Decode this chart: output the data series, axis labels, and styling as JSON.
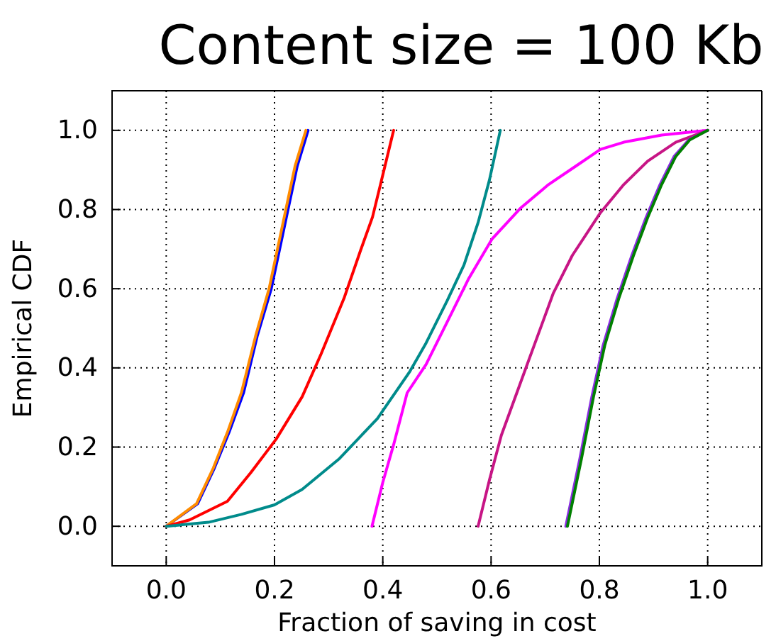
{
  "chart_data": {
    "type": "line",
    "title": "Content size = 100 Kb",
    "xlabel": "Fraction of saving in cost",
    "ylabel": "Empirical CDF",
    "xlim": [
      -0.1,
      1.1
    ],
    "ylim": [
      -0.1,
      1.1
    ],
    "xticks": [
      {
        "value": 0,
        "label": "0.0"
      },
      0.2,
      0.4,
      0.6,
      0.8,
      {
        "value": 1,
        "label": "1.0"
      }
    ],
    "yticks": [
      {
        "value": 0,
        "label": "0.0"
      },
      0.2,
      0.4,
      0.6,
      0.8,
      {
        "value": 1,
        "label": "1.0"
      }
    ],
    "grid": true,
    "line_style": "solid",
    "marker": "none",
    "series": [
      {
        "color": "#0000ff",
        "x": [
          0,
          0.058,
          0.089,
          0.116,
          0.143,
          0.168,
          0.194,
          0.22,
          0.242,
          0.262
        ],
        "values": [
          0,
          0.057,
          0.147,
          0.237,
          0.338,
          0.48,
          0.6,
          0.768,
          0.91,
          1.0
        ]
      },
      {
        "color": "#ff8c00",
        "x": [
          0,
          0.056,
          0.087,
          0.113,
          0.139,
          0.165,
          0.19,
          0.216,
          0.238,
          0.258
        ],
        "values": [
          0,
          0.057,
          0.147,
          0.237,
          0.338,
          0.48,
          0.6,
          0.768,
          0.91,
          1.0
        ]
      },
      {
        "color": "#ff0000",
        "x": [
          0,
          0.043,
          0.113,
          0.156,
          0.203,
          0.251,
          0.286,
          0.329,
          0.359,
          0.381,
          0.398,
          0.42
        ],
        "values": [
          0,
          0.016,
          0.063,
          0.135,
          0.22,
          0.327,
          0.435,
          0.578,
          0.697,
          0.781,
          0.876,
          1.0
        ]
      },
      {
        "color": "#008b8b",
        "x": [
          0,
          0.078,
          0.139,
          0.2,
          0.251,
          0.32,
          0.39,
          0.45,
          0.48,
          0.519,
          0.55,
          0.576,
          0.597,
          0.617
        ],
        "values": [
          0,
          0.01,
          0.03,
          0.054,
          0.093,
          0.171,
          0.272,
          0.391,
          0.463,
          0.57,
          0.66,
          0.767,
          0.875,
          1.0
        ]
      },
      {
        "color": "#ff00ff",
        "x": [
          0.38,
          0.4,
          0.42,
          0.445,
          0.48,
          0.515,
          0.558,
          0.602,
          0.654,
          0.706,
          0.758,
          0.802,
          0.845,
          0.915,
          1.0
        ],
        "values": [
          0,
          0.111,
          0.206,
          0.337,
          0.409,
          0.505,
          0.624,
          0.726,
          0.803,
          0.863,
          0.911,
          0.952,
          0.97,
          0.988,
          1.0
        ]
      },
      {
        "color": "#c71585",
        "x": [
          0.576,
          0.597,
          0.619,
          0.667,
          0.715,
          0.75,
          0.802,
          0.845,
          0.889,
          0.941,
          1.0
        ],
        "values": [
          0,
          0.117,
          0.23,
          0.41,
          0.589,
          0.684,
          0.792,
          0.863,
          0.922,
          0.97,
          1.0
        ]
      },
      {
        "color": "#8a2be2",
        "x": [
          0.738,
          0.764,
          0.786,
          0.807,
          0.833,
          0.86,
          0.886,
          0.912,
          0.938,
          0.965,
          1.0
        ],
        "values": [
          0,
          0.171,
          0.326,
          0.457,
          0.576,
          0.684,
          0.779,
          0.863,
          0.934,
          0.976,
          1.0
        ]
      },
      {
        "color": "#008000",
        "x": [
          0.741,
          0.767,
          0.789,
          0.81,
          0.836,
          0.863,
          0.889,
          0.915,
          0.941,
          0.967,
          1.0
        ],
        "values": [
          0,
          0.171,
          0.326,
          0.457,
          0.576,
          0.684,
          0.779,
          0.863,
          0.934,
          0.976,
          1.0
        ]
      }
    ]
  }
}
